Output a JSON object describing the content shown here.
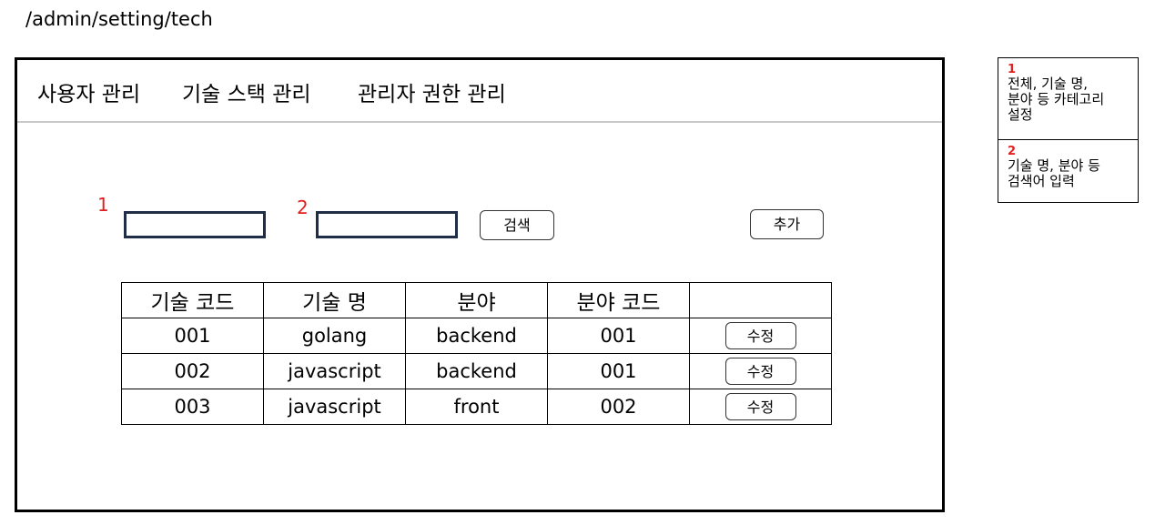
{
  "route": "/admin/setting/tech",
  "nav": {
    "user_admin": "사용자 관리",
    "tech_stack_admin": "기술 스택 관리",
    "admin_permission": "관리자 권한 관리"
  },
  "search": {
    "marker_1": "1",
    "marker_2": "2",
    "category_value": "",
    "keyword_value": "",
    "search_button": "검색",
    "add_button": "추가"
  },
  "table": {
    "headers": [
      "기술 코드",
      "기술 명",
      "분야",
      "분야 코드",
      ""
    ],
    "rows": [
      [
        "001",
        "golang",
        "backend",
        "001",
        "수정"
      ],
      [
        "002",
        "javascript",
        "backend",
        "001",
        "수정"
      ],
      [
        "003",
        "javascript",
        "front",
        "002",
        "수정"
      ]
    ]
  },
  "notes": [
    {
      "num": "1",
      "line1": "전체, 기술 명,",
      "line2": "분야 등 카테고리",
      "line3": "설정"
    },
    {
      "num": "2",
      "line1": "기술 명, 분야 등",
      "line2": "검색어 입력"
    }
  ],
  "colors": {
    "marker": "#e02020",
    "input_border": "#1f2d46",
    "divider": "#c8c8c8"
  }
}
